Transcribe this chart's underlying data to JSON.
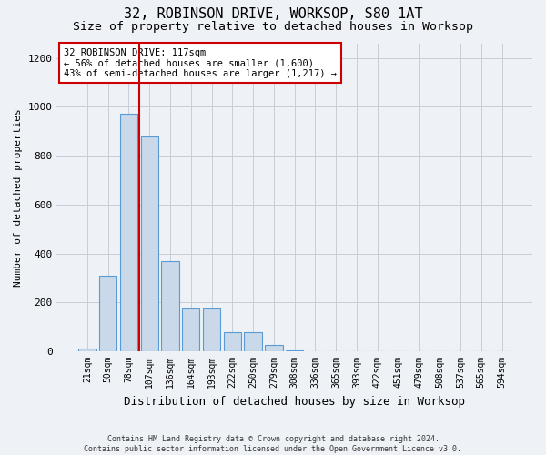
{
  "title": "32, ROBINSON DRIVE, WORKSOP, S80 1AT",
  "subtitle": "Size of property relative to detached houses in Worksop",
  "xlabel": "Distribution of detached houses by size in Worksop",
  "ylabel": "Number of detached properties",
  "bar_labels": [
    "21sqm",
    "50sqm",
    "78sqm",
    "107sqm",
    "136sqm",
    "164sqm",
    "193sqm",
    "222sqm",
    "250sqm",
    "279sqm",
    "308sqm",
    "336sqm",
    "365sqm",
    "393sqm",
    "422sqm",
    "451sqm",
    "479sqm",
    "508sqm",
    "537sqm",
    "565sqm",
    "594sqm"
  ],
  "bar_values": [
    10,
    310,
    970,
    880,
    370,
    175,
    175,
    80,
    80,
    25,
    5,
    2,
    1,
    1,
    0,
    0,
    0,
    0,
    0,
    0,
    0
  ],
  "bar_color": "#c9d9ea",
  "bar_edgecolor": "#5b9bd5",
  "vline_x": 2.5,
  "vline_color": "#cc0000",
  "annotation_text": "32 ROBINSON DRIVE: 117sqm\n← 56% of detached houses are smaller (1,600)\n43% of semi-detached houses are larger (1,217) →",
  "annotation_box_color": "#cc0000",
  "annotation_text_fontsize": 7.5,
  "ylim": [
    0,
    1260
  ],
  "yticks": [
    0,
    200,
    400,
    600,
    800,
    1000,
    1200
  ],
  "footer_text": "Contains HM Land Registry data © Crown copyright and database right 2024.\nContains public sector information licensed under the Open Government Licence v3.0.",
  "background_color": "#eef2f7",
  "plot_background": "#eef2f7",
  "title_fontsize": 11,
  "subtitle_fontsize": 9.5,
  "xlabel_fontsize": 9,
  "ylabel_fontsize": 8,
  "grid_color": "#c5cdd6"
}
